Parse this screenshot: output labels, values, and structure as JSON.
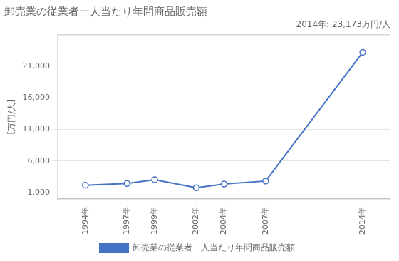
{
  "chart_data": {
    "type": "line",
    "title": "卸売業の従業者一人当たり年間商品販売額",
    "ylabel": "[万円/人]",
    "annotation": "2014年: 23,173万円/人",
    "x": [
      1994,
      1997,
      1999,
      2002,
      2004,
      2007,
      2014
    ],
    "xlim": [
      1992,
      2016
    ],
    "xticks": [
      {
        "value": 1994,
        "label": "1994年"
      },
      {
        "value": 1997,
        "label": "1997年"
      },
      {
        "value": 1999,
        "label": "1999年"
      },
      {
        "value": 2002,
        "label": "2002年"
      },
      {
        "value": 2004,
        "label": "2004年"
      },
      {
        "value": 2007,
        "label": "2007年"
      },
      {
        "value": 2014,
        "label": "2014年"
      }
    ],
    "series": [
      {
        "name": "卸売業の従業者一人当たり年間商品販売額",
        "color": "#4472C4",
        "marker": "circle",
        "values": [
          2174,
          2448,
          3044,
          1774,
          2360,
          2832,
          23173
        ]
      }
    ],
    "ylim": [
      0,
      26000
    ],
    "yticks": [
      {
        "value": 1000,
        "label": "1,000"
      },
      {
        "value": 6000,
        "label": "6,000"
      },
      {
        "value": 11000,
        "label": "11,000"
      },
      {
        "value": 16000,
        "label": "16,000"
      },
      {
        "value": 21000,
        "label": "21,000"
      }
    ],
    "grid": "y",
    "legend": "bottom"
  }
}
